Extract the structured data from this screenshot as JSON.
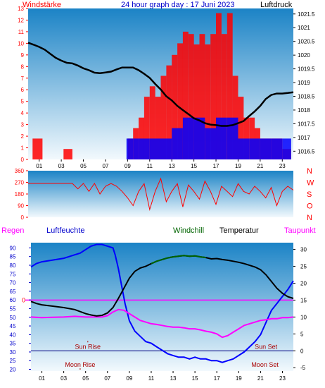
{
  "header": {
    "left": "Windstärke",
    "title": "24 hour graph day : 17 Juni 2023",
    "right": "Luftdruck"
  },
  "colors": {
    "wind": "#ff0000",
    "gust": "#0000ff",
    "pressure": "#000000",
    "humidity": "#0000ff",
    "temperature": "#000000",
    "dewpoint": "#ff00ff",
    "windchill": "#006400",
    "label_blue": "#0000cc",
    "sky_top": "#1b83c6",
    "sky_bottom": "#f2f9fd"
  },
  "chart_data": [
    {
      "type": "bar",
      "name": "wind-pressure",
      "x_ticks": [
        "01",
        "03",
        "05",
        "07",
        "09",
        "11",
        "13",
        "15",
        "17",
        "19",
        "21",
        "23"
      ],
      "xlim": [
        0,
        24
      ],
      "y_left_ticks": [
        "0",
        "1",
        "2",
        "3",
        "4",
        "5",
        "6",
        "7",
        "8",
        "9",
        "10",
        "11",
        "12",
        "13"
      ],
      "y_left_lim": [
        0,
        13
      ],
      "y_right_ticks": [
        "1016.5",
        "1017",
        "1017.5",
        "1018",
        "1018.5",
        "1019",
        "1019.5",
        "1020",
        "1020.5",
        "1021",
        "1021.5"
      ],
      "y_right_lim": [
        1016.2,
        1021.7
      ],
      "wind_speed": [
        [
          0.4,
          1.8
        ],
        [
          1.3,
          0
        ],
        [
          2.4,
          0
        ],
        [
          3.2,
          0.9
        ],
        [
          4.0,
          0
        ],
        [
          5.0,
          0
        ],
        [
          6.2,
          0
        ],
        [
          7.0,
          0
        ],
        [
          8.0,
          0
        ],
        [
          9.0,
          1.8
        ],
        [
          9.5,
          2.7
        ],
        [
          10.0,
          3.6
        ],
        [
          10.5,
          5.4
        ],
        [
          11.0,
          6.3
        ],
        [
          11.5,
          5.4
        ],
        [
          12.0,
          7.2
        ],
        [
          12.5,
          8.1
        ],
        [
          13.0,
          9.0
        ],
        [
          13.5,
          10.0
        ],
        [
          14.0,
          11.0
        ],
        [
          14.5,
          10.8
        ],
        [
          15.0,
          9.9
        ],
        [
          15.5,
          10.8
        ],
        [
          16.0,
          9.9
        ],
        [
          16.5,
          10.8
        ],
        [
          17.0,
          12.6
        ],
        [
          17.5,
          10.8
        ],
        [
          18.0,
          12.6
        ],
        [
          18.5,
          7.2
        ],
        [
          19.0,
          5.4
        ],
        [
          19.5,
          3.6
        ],
        [
          20.0,
          3.6
        ],
        [
          20.5,
          2.7
        ],
        [
          21.0,
          1.8
        ],
        [
          22.0,
          1.8
        ],
        [
          23.0,
          0.9
        ],
        [
          23.8,
          1.8
        ]
      ],
      "wind_gust": [
        [
          8.9,
          1.8
        ],
        [
          9.5,
          1.8
        ],
        [
          10.0,
          1.8
        ],
        [
          11.0,
          1.8
        ],
        [
          12.0,
          1.8
        ],
        [
          13.0,
          2.7
        ],
        [
          14.0,
          3.6
        ],
        [
          15.0,
          3.6
        ],
        [
          16.0,
          2.7
        ],
        [
          17.0,
          3.6
        ],
        [
          18.0,
          3.6
        ],
        [
          19.0,
          1.8
        ],
        [
          20.0,
          1.8
        ],
        [
          21.0,
          1.8
        ],
        [
          22.0,
          1.8
        ],
        [
          23.0,
          1.8
        ],
        [
          23.8,
          1.8
        ]
      ],
      "pressure": [
        [
          0.0,
          1020.45
        ],
        [
          0.5,
          1020.38
        ],
        [
          1.0,
          1020.3
        ],
        [
          1.5,
          1020.2
        ],
        [
          2.0,
          1020.05
        ],
        [
          2.5,
          1019.9
        ],
        [
          3.0,
          1019.8
        ],
        [
          3.5,
          1019.72
        ],
        [
          4.0,
          1019.7
        ],
        [
          4.5,
          1019.62
        ],
        [
          5.0,
          1019.52
        ],
        [
          5.5,
          1019.45
        ],
        [
          6.0,
          1019.36
        ],
        [
          6.5,
          1019.34
        ],
        [
          7.0,
          1019.37
        ],
        [
          7.5,
          1019.4
        ],
        [
          8.0,
          1019.48
        ],
        [
          8.5,
          1019.55
        ],
        [
          9.0,
          1019.55
        ],
        [
          9.5,
          1019.55
        ],
        [
          10.0,
          1019.45
        ],
        [
          10.5,
          1019.32
        ],
        [
          11.0,
          1019.17
        ],
        [
          11.5,
          1018.95
        ],
        [
          12.0,
          1018.75
        ],
        [
          12.5,
          1018.5
        ],
        [
          13.0,
          1018.35
        ],
        [
          13.5,
          1018.15
        ],
        [
          14.0,
          1018.0
        ],
        [
          14.5,
          1017.85
        ],
        [
          15.0,
          1017.7
        ],
        [
          15.5,
          1017.62
        ],
        [
          16.0,
          1017.52
        ],
        [
          16.5,
          1017.47
        ],
        [
          17.0,
          1017.45
        ],
        [
          17.5,
          1017.42
        ],
        [
          18.0,
          1017.42
        ],
        [
          18.5,
          1017.45
        ],
        [
          19.0,
          1017.52
        ],
        [
          19.5,
          1017.6
        ],
        [
          20.0,
          1017.78
        ],
        [
          20.5,
          1017.95
        ],
        [
          21.0,
          1018.15
        ],
        [
          21.5,
          1018.4
        ],
        [
          22.0,
          1018.55
        ],
        [
          22.5,
          1018.6
        ],
        [
          23.0,
          1018.6
        ],
        [
          23.5,
          1018.62
        ],
        [
          24.0,
          1018.65
        ]
      ]
    },
    {
      "type": "scatter",
      "name": "wind-direction",
      "y_ticks": [
        "0",
        "90",
        "180",
        "270",
        "360"
      ],
      "ylim": [
        0,
        360
      ],
      "compass_labels": [
        "N",
        "W",
        "S",
        "O",
        "N"
      ],
      "direction": [
        [
          0.0,
          262
        ],
        [
          1.0,
          262
        ],
        [
          2.0,
          262
        ],
        [
          3.0,
          262
        ],
        [
          4.0,
          262
        ],
        [
          4.5,
          220
        ],
        [
          5.0,
          262
        ],
        [
          5.5,
          200
        ],
        [
          6.0,
          262
        ],
        [
          6.5,
          180
        ],
        [
          7.0,
          240
        ],
        [
          7.5,
          262
        ],
        [
          8.0,
          240
        ],
        [
          8.5,
          200
        ],
        [
          9.0,
          150
        ],
        [
          9.5,
          90
        ],
        [
          10.0,
          200
        ],
        [
          10.5,
          260
        ],
        [
          11.0,
          60
        ],
        [
          11.5,
          200
        ],
        [
          12.0,
          300
        ],
        [
          12.5,
          120
        ],
        [
          13.0,
          200
        ],
        [
          13.5,
          260
        ],
        [
          14.0,
          80
        ],
        [
          14.5,
          250
        ],
        [
          15.0,
          200
        ],
        [
          15.5,
          140
        ],
        [
          16.0,
          280
        ],
        [
          16.5,
          200
        ],
        [
          17.0,
          100
        ],
        [
          17.5,
          240
        ],
        [
          18.0,
          200
        ],
        [
          18.5,
          160
        ],
        [
          19.0,
          260
        ],
        [
          19.5,
          200
        ],
        [
          20.0,
          180
        ],
        [
          20.5,
          240
        ],
        [
          21.0,
          200
        ],
        [
          21.5,
          150
        ],
        [
          22.0,
          230
        ],
        [
          22.5,
          90
        ],
        [
          23.0,
          200
        ],
        [
          23.5,
          240
        ],
        [
          24.0,
          210
        ]
      ]
    },
    {
      "type": "line",
      "name": "temperature-humidity",
      "legend": [
        "Regen",
        "Luftfeuchte",
        "Windchill",
        "Temperatur",
        "Taupunkt"
      ],
      "x_ticks": [
        "01",
        "03",
        "05",
        "07",
        "09",
        "11",
        "13",
        "15",
        "17",
        "19",
        "21",
        "23"
      ],
      "xlim": [
        0,
        24
      ],
      "y_left_ticks": [
        "20",
        "25",
        "30",
        "35",
        "40",
        "45",
        "50",
        "55",
        "60",
        "65",
        "70",
        "75",
        "80",
        "85",
        "90"
      ],
      "y_left_lim": [
        19,
        93
      ],
      "y_right_ticks": [
        "-5",
        "0",
        "5",
        "10",
        "15",
        "20",
        "25",
        "30"
      ],
      "y_right_lim": [
        -6,
        32
      ],
      "rain_label": "0",
      "sun_rise_label": "Sun Rise",
      "sun_set_label": "Sun Set",
      "moon_rise_label": "Moon Rise",
      "moon_set_label": "Moon Set",
      "sun_rise": 5.2,
      "sun_set": 21.5,
      "moon_rise": 4.5,
      "moon_set": 21.4,
      "humidity": [
        [
          0.0,
          79
        ],
        [
          0.5,
          81
        ],
        [
          1.0,
          82
        ],
        [
          2.0,
          83
        ],
        [
          3.0,
          84
        ],
        [
          3.5,
          85
        ],
        [
          4.0,
          86
        ],
        [
          4.5,
          87
        ],
        [
          5.0,
          89
        ],
        [
          5.5,
          91
        ],
        [
          6.0,
          92
        ],
        [
          6.5,
          92
        ],
        [
          7.0,
          91
        ],
        [
          7.5,
          90
        ],
        [
          7.7,
          86
        ],
        [
          8.0,
          78
        ],
        [
          8.3,
          68
        ],
        [
          8.6,
          58
        ],
        [
          9.0,
          48
        ],
        [
          9.5,
          42
        ],
        [
          10.0,
          39
        ],
        [
          10.5,
          36
        ],
        [
          11.0,
          35
        ],
        [
          11.5,
          33
        ],
        [
          12.0,
          31
        ],
        [
          12.5,
          29
        ],
        [
          13.0,
          28
        ],
        [
          13.5,
          27
        ],
        [
          14.0,
          27
        ],
        [
          14.5,
          26
        ],
        [
          15.0,
          27
        ],
        [
          15.5,
          26
        ],
        [
          16.0,
          26
        ],
        [
          16.5,
          25
        ],
        [
          17.0,
          25
        ],
        [
          17.5,
          24
        ],
        [
          18.0,
          25
        ],
        [
          18.5,
          26
        ],
        [
          19.0,
          28
        ],
        [
          19.5,
          30
        ],
        [
          20.0,
          33
        ],
        [
          20.5,
          36
        ],
        [
          21.0,
          40
        ],
        [
          21.5,
          47
        ],
        [
          22.0,
          54
        ],
        [
          22.5,
          58
        ],
        [
          23.0,
          62
        ],
        [
          23.5,
          66
        ],
        [
          24.0,
          71
        ]
      ],
      "temperature": [
        [
          0.0,
          14.6
        ],
        [
          0.5,
          14.0
        ],
        [
          1.0,
          13.6
        ],
        [
          2.0,
          13.2
        ],
        [
          3.0,
          12.8
        ],
        [
          4.0,
          12.2
        ],
        [
          5.0,
          11.0
        ],
        [
          5.5,
          10.6
        ],
        [
          6.0,
          10.3
        ],
        [
          6.5,
          10.5
        ],
        [
          7.0,
          11.2
        ],
        [
          7.5,
          12.8
        ],
        [
          8.0,
          15.5
        ],
        [
          8.5,
          18.5
        ],
        [
          9.0,
          21.5
        ],
        [
          9.5,
          23.5
        ],
        [
          10.0,
          24.5
        ],
        [
          10.5,
          25.0
        ],
        [
          11.0,
          25.8
        ],
        [
          11.5,
          26.5
        ],
        [
          12.0,
          27.0
        ],
        [
          12.5,
          27.5
        ],
        [
          13.0,
          27.8
        ],
        [
          13.5,
          28.0
        ],
        [
          14.0,
          28.2
        ],
        [
          14.5,
          28.0
        ],
        [
          15.0,
          28.1
        ],
        [
          15.5,
          27.8
        ],
        [
          16.0,
          27.6
        ],
        [
          16.5,
          27.2
        ],
        [
          17.0,
          27.3
        ],
        [
          17.5,
          27.0
        ],
        [
          18.0,
          26.8
        ],
        [
          18.5,
          26.5
        ],
        [
          19.0,
          26.2
        ],
        [
          19.5,
          25.8
        ],
        [
          20.0,
          25.3
        ],
        [
          20.5,
          24.8
        ],
        [
          21.0,
          24.0
        ],
        [
          21.5,
          22.5
        ],
        [
          22.0,
          20.5
        ],
        [
          22.5,
          18.5
        ],
        [
          23.0,
          17.0
        ],
        [
          23.5,
          16.0
        ],
        [
          24.0,
          15.5
        ]
      ],
      "windchill": [
        [
          11.0,
          25.8
        ],
        [
          11.5,
          26.5
        ],
        [
          12.0,
          27.0
        ],
        [
          12.5,
          27.5
        ],
        [
          13.0,
          27.8
        ],
        [
          13.5,
          28.0
        ],
        [
          14.0,
          28.2
        ],
        [
          14.5,
          28.0
        ],
        [
          15.0,
          28.1
        ],
        [
          15.5,
          27.8
        ],
        [
          16.0,
          27.6
        ]
      ],
      "dewpoint": [
        [
          0.0,
          10.0
        ],
        [
          1.0,
          9.8
        ],
        [
          2.0,
          9.9
        ],
        [
          3.0,
          10.0
        ],
        [
          4.0,
          10.2
        ],
        [
          5.0,
          10.0
        ],
        [
          5.5,
          10.0
        ],
        [
          6.0,
          10.0
        ],
        [
          6.5,
          10.0
        ],
        [
          7.0,
          10.4
        ],
        [
          7.5,
          11.5
        ],
        [
          8.0,
          12.2
        ],
        [
          8.5,
          12.0
        ],
        [
          9.0,
          11.0
        ],
        [
          9.5,
          10.0
        ],
        [
          10.0,
          9.0
        ],
        [
          10.5,
          8.5
        ],
        [
          11.0,
          8.0
        ],
        [
          11.5,
          7.8
        ],
        [
          12.0,
          7.5
        ],
        [
          12.5,
          7.2
        ],
        [
          13.0,
          7.0
        ],
        [
          13.5,
          7.0
        ],
        [
          14.0,
          6.8
        ],
        [
          14.5,
          6.5
        ],
        [
          15.0,
          6.5
        ],
        [
          15.5,
          6.2
        ],
        [
          16.0,
          5.8
        ],
        [
          16.5,
          5.5
        ],
        [
          17.0,
          5.0
        ],
        [
          17.5,
          4.0
        ],
        [
          18.0,
          4.5
        ],
        [
          18.5,
          5.5
        ],
        [
          19.0,
          6.5
        ],
        [
          19.5,
          7.5
        ],
        [
          20.0,
          8.0
        ],
        [
          20.5,
          8.5
        ],
        [
          21.0,
          9.0
        ],
        [
          21.5,
          9.2
        ],
        [
          22.0,
          9.5
        ],
        [
          22.5,
          9.5
        ],
        [
          23.0,
          9.8
        ],
        [
          23.5,
          9.8
        ],
        [
          24.0,
          10.0
        ]
      ]
    }
  ]
}
